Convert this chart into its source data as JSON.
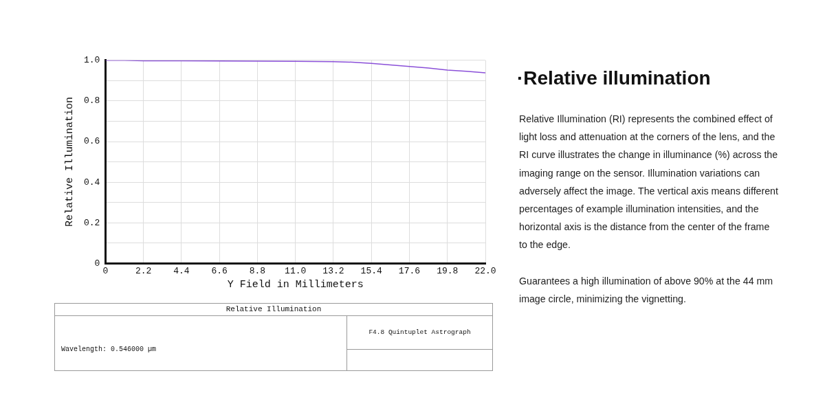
{
  "chart_data": {
    "type": "line",
    "title": "·Relative illumination",
    "xlabel": "Y Field in Millimeters",
    "ylabel": "Relative Illumination",
    "x": [
      0,
      1.1,
      2.2,
      4.4,
      6.6,
      8.8,
      11,
      13.2,
      14.3,
      15.4,
      16.5,
      17.6,
      18.7,
      19.8,
      20.9,
      22
    ],
    "series": [
      {
        "color": "#8a4fd8",
        "values": [
          1.0,
          1.0,
          0.998,
          0.998,
          0.997,
          0.996,
          0.995,
          0.993,
          0.991,
          0.985,
          0.977,
          0.97,
          0.962,
          0.952,
          0.946,
          0.938
        ]
      }
    ],
    "xlim": [
      0,
      22
    ],
    "xticks": [
      0,
      2.2,
      4.4,
      6.6,
      8.8,
      {
        "value": 11,
        "label": "11.0"
      },
      13.2,
      15.4,
      17.6,
      19.8,
      {
        "value": 22,
        "label": "22.0"
      }
    ],
    "ylim": [
      0,
      1
    ],
    "yticks": [
      0,
      {
        "value": 0.1,
        "label": null
      },
      0.2,
      {
        "value": 0.3,
        "label": null
      },
      0.4,
      {
        "value": 0.5,
        "label": null
      },
      0.6,
      {
        "value": 0.7,
        "label": null
      },
      0.8,
      {
        "value": 0.9,
        "label": null
      },
      {
        "value": 1,
        "label": "1.0"
      }
    ],
    "grid": true,
    "legend": false,
    "marker": "none",
    "line_style": "solid",
    "annotations": [
      "Relative Illumination",
      "Wavelength: 0.546000 µm",
      "F4.8 Quintuplet Astrograph",
      "Relative Illumination (RI) represents the combined effect of light loss and attenuation at the corners of the lens, and the RI curve illustrates the change in illuminance (%) across the imaging range on the sensor. Illumination variations can adversely affect the image. The vertical axis means different percentages of example illumination intensities, and the horizontal axis is the distance from the center of the frame to the edge.",
      "Guarantees a high illumination of above 90% at the 44 mm image circle, minimizing the vignetting."
    ]
  }
}
